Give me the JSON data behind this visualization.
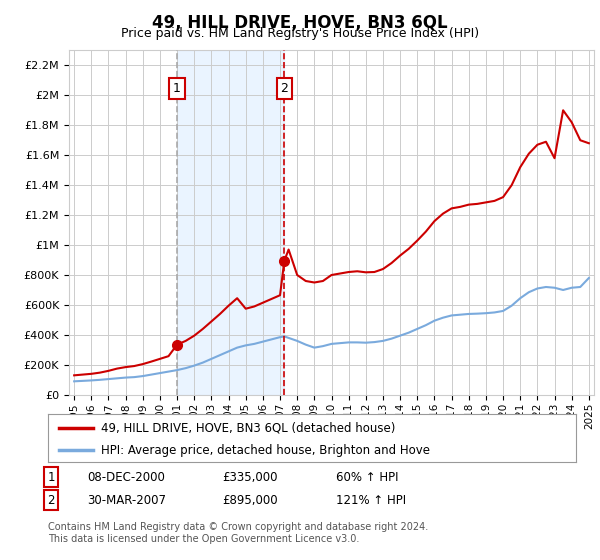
{
  "title": "49, HILL DRIVE, HOVE, BN3 6QL",
  "subtitle": "Price paid vs. HM Land Registry's House Price Index (HPI)",
  "legend_line1": "49, HILL DRIVE, HOVE, BN3 6QL (detached house)",
  "legend_line2": "HPI: Average price, detached house, Brighton and Hove",
  "annotation1": [
    "1",
    "08-DEC-2000",
    "£335,000",
    "60% ↑ HPI"
  ],
  "annotation2": [
    "2",
    "30-MAR-2007",
    "£895,000",
    "121% ↑ HPI"
  ],
  "footer": "Contains HM Land Registry data © Crown copyright and database right 2024.\nThis data is licensed under the Open Government Licence v3.0.",
  "ylim": [
    0,
    2300000
  ],
  "yticks": [
    0,
    200000,
    400000,
    600000,
    800000,
    1000000,
    1200000,
    1400000,
    1600000,
    1800000,
    2000000,
    2200000
  ],
  "ytick_labels": [
    "£0",
    "£200K",
    "£400K",
    "£600K",
    "£800K",
    "£1M",
    "£1.2M",
    "£1.4M",
    "£1.6M",
    "£1.8M",
    "£2M",
    "£2.2M"
  ],
  "xlim_start": 1994.7,
  "xlim_end": 2025.3,
  "line1_color": "#cc0000",
  "line2_color": "#7aaadd",
  "marker_color": "#cc0000",
  "vline1_color": "#aaaaaa",
  "vline2_color": "#cc0000",
  "shade_color": "#ddeeff",
  "background_color": "#ffffff",
  "grid_color": "#cccccc",
  "purchase1_x": 2001.0,
  "purchase1_y": 335000,
  "purchase2_x": 2007.25,
  "purchase2_y": 895000,
  "hpi_years": [
    1995.0,
    1995.5,
    1996.0,
    1996.5,
    1997.0,
    1997.5,
    1998.0,
    1998.5,
    1999.0,
    1999.5,
    2000.0,
    2000.5,
    2001.0,
    2001.5,
    2002.0,
    2002.5,
    2003.0,
    2003.5,
    2004.0,
    2004.5,
    2005.0,
    2005.5,
    2006.0,
    2006.5,
    2007.0,
    2007.25,
    2007.5,
    2008.0,
    2008.5,
    2009.0,
    2009.5,
    2010.0,
    2010.5,
    2011.0,
    2011.5,
    2012.0,
    2012.5,
    2013.0,
    2013.5,
    2014.0,
    2014.5,
    2015.0,
    2015.5,
    2016.0,
    2016.5,
    2017.0,
    2017.5,
    2018.0,
    2018.5,
    2019.0,
    2019.5,
    2020.0,
    2020.5,
    2021.0,
    2021.5,
    2022.0,
    2022.5,
    2023.0,
    2023.5,
    2024.0,
    2024.5,
    2025.0
  ],
  "hpi_values": [
    90000,
    93000,
    96000,
    100000,
    105000,
    110000,
    115000,
    118000,
    125000,
    135000,
    145000,
    155000,
    165000,
    178000,
    195000,
    215000,
    240000,
    265000,
    290000,
    315000,
    330000,
    340000,
    355000,
    370000,
    385000,
    390000,
    380000,
    360000,
    335000,
    315000,
    325000,
    340000,
    345000,
    350000,
    350000,
    348000,
    352000,
    360000,
    375000,
    395000,
    415000,
    440000,
    465000,
    495000,
    515000,
    530000,
    535000,
    540000,
    542000,
    545000,
    550000,
    560000,
    595000,
    645000,
    685000,
    710000,
    720000,
    715000,
    700000,
    715000,
    720000,
    780000
  ],
  "red_years": [
    1995.0,
    1995.5,
    1996.0,
    1996.5,
    1997.0,
    1997.5,
    1998.0,
    1998.5,
    1999.0,
    1999.5,
    2000.0,
    2000.5,
    2001.0,
    2001.5,
    2002.0,
    2002.5,
    2003.0,
    2003.5,
    2004.0,
    2004.5,
    2005.0,
    2005.5,
    2006.0,
    2006.5,
    2007.0,
    2007.25,
    2007.5,
    2008.0,
    2008.5,
    2009.0,
    2009.5,
    2010.0,
    2010.5,
    2011.0,
    2011.5,
    2012.0,
    2012.5,
    2013.0,
    2013.5,
    2014.0,
    2014.5,
    2015.0,
    2015.5,
    2016.0,
    2016.5,
    2017.0,
    2017.5,
    2018.0,
    2018.5,
    2019.0,
    2019.5,
    2020.0,
    2020.5,
    2021.0,
    2021.5,
    2022.0,
    2022.5,
    2023.0,
    2023.5,
    2024.0,
    2024.5,
    2025.0
  ],
  "red_values": [
    130000,
    135000,
    140000,
    148000,
    160000,
    175000,
    185000,
    192000,
    205000,
    222000,
    240000,
    258000,
    335000,
    360000,
    395000,
    440000,
    490000,
    540000,
    595000,
    645000,
    575000,
    590000,
    615000,
    640000,
    665000,
    895000,
    970000,
    800000,
    760000,
    750000,
    760000,
    800000,
    810000,
    820000,
    825000,
    818000,
    820000,
    840000,
    880000,
    930000,
    975000,
    1030000,
    1090000,
    1160000,
    1210000,
    1245000,
    1255000,
    1270000,
    1275000,
    1285000,
    1295000,
    1320000,
    1400000,
    1520000,
    1610000,
    1670000,
    1690000,
    1580000,
    1900000,
    1820000,
    1700000,
    1680000
  ]
}
